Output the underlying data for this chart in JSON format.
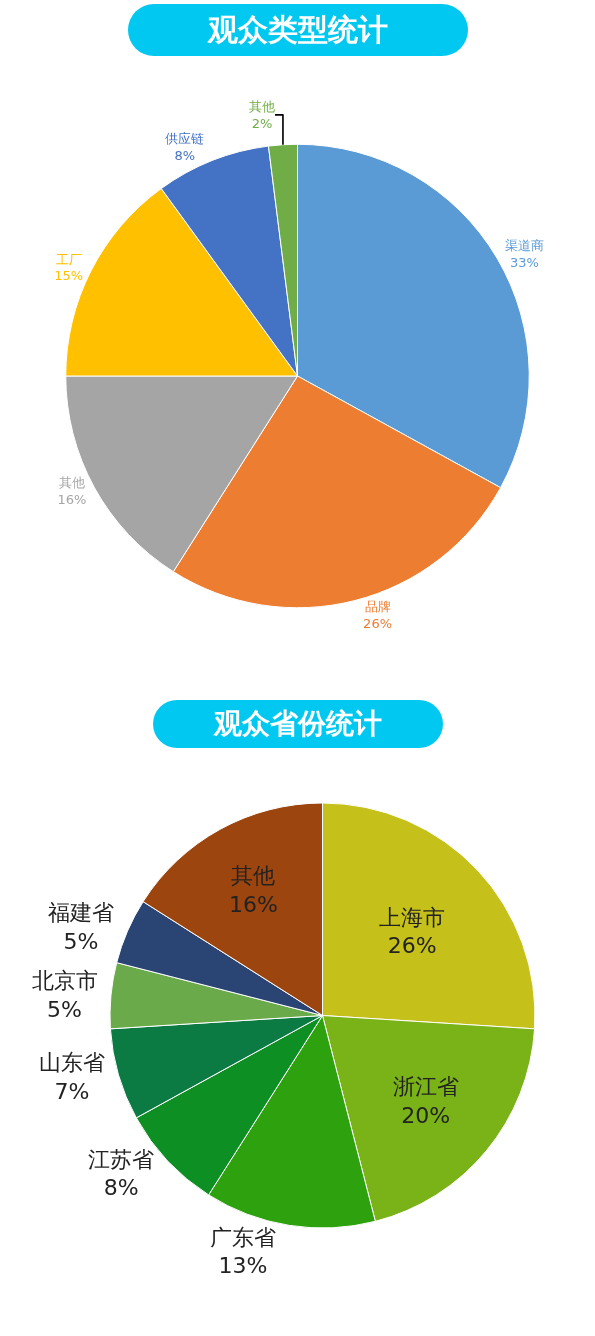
{
  "chart_data": [
    {
      "type": "pie",
      "title": "观众类型统计",
      "categories": [
        "渠道商",
        "品牌",
        "其他",
        "工厂",
        "供应链",
        "其他"
      ],
      "values": [
        33,
        26,
        16,
        15,
        8,
        2
      ],
      "value_labels": [
        "33%",
        "26%",
        "16%",
        "15%",
        "8%",
        "2%"
      ],
      "colors": [
        "#5b9bd5",
        "#ed7d31",
        "#a5a5a5",
        "#ffc000",
        "#4472c4",
        "#70ad47"
      ],
      "legend": false
    },
    {
      "type": "pie",
      "title": "观众省份统计",
      "categories": [
        "上海市",
        "浙江省",
        "广东省",
        "江苏省",
        "山东省",
        "北京市",
        "福建省",
        "其他"
      ],
      "values": [
        26,
        20,
        13,
        8,
        7,
        5,
        5,
        16
      ],
      "value_labels": [
        "26%",
        "20%",
        "13%",
        "8%",
        "7%",
        "5%",
        "5%",
        "16%"
      ],
      "colors": [
        "#c5c11a",
        "#7ab317",
        "#2ea10e",
        "#0d8f24",
        "#0c7a43",
        "#6aaa4a",
        "#2a4474",
        "#9c450f"
      ],
      "legend": false
    }
  ]
}
